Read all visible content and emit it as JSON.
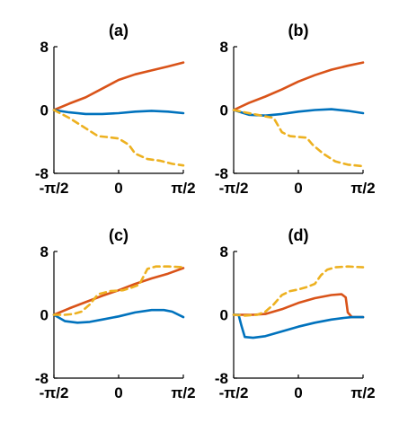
{
  "chart_data": [
    {
      "panel": "(a)",
      "title": "(a)",
      "type": "line",
      "x_ticks": [
        "-π/2",
        "0",
        "π/2"
      ],
      "y_ticks": [
        "8",
        "0",
        "-8"
      ],
      "xlim": [
        -1.5708,
        1.5708
      ],
      "ylim": [
        -8,
        8
      ],
      "series": [
        {
          "color": "#D95319",
          "dash": false,
          "x": [
            -1.5708,
            -1.2,
            -0.8,
            -0.4,
            0,
            0.4,
            0.8,
            1.2,
            1.5708
          ],
          "y": [
            0,
            0.8,
            1.6,
            2.7,
            3.8,
            4.5,
            5.0,
            5.5,
            6.0
          ]
        },
        {
          "color": "#0072BD",
          "dash": false,
          "x": [
            -1.5708,
            -1.2,
            -0.8,
            -0.4,
            0,
            0.4,
            0.8,
            1.2,
            1.5708
          ],
          "y": [
            0,
            -0.3,
            -0.5,
            -0.5,
            -0.4,
            -0.2,
            -0.1,
            -0.2,
            -0.4
          ]
        },
        {
          "color": "#EDB120",
          "dash": true,
          "x": [
            -1.5708,
            -1.2,
            -0.8,
            -0.5,
            -0.3,
            0,
            0.25,
            0.4,
            0.7,
            1.0,
            1.3,
            1.5708
          ],
          "y": [
            0,
            -1.0,
            -2.3,
            -3.3,
            -3.4,
            -3.6,
            -4.4,
            -5.5,
            -6.2,
            -6.4,
            -6.8,
            -7.0
          ]
        }
      ]
    },
    {
      "panel": "(b)",
      "title": "(b)",
      "type": "line",
      "x_ticks": [
        "-π/2",
        "0",
        "π/2"
      ],
      "y_ticks": [
        "8",
        "0",
        "-8"
      ],
      "xlim": [
        -1.5708,
        1.5708
      ],
      "ylim": [
        -8,
        8
      ],
      "series": [
        {
          "color": "#D95319",
          "dash": false,
          "x": [
            -1.5708,
            -1.2,
            -0.8,
            -0.4,
            0,
            0.4,
            0.8,
            1.2,
            1.5708
          ],
          "y": [
            0,
            0.9,
            1.7,
            2.6,
            3.6,
            4.4,
            5.1,
            5.6,
            6.0
          ]
        },
        {
          "color": "#0072BD",
          "dash": false,
          "x": [
            -1.5708,
            -1.2,
            -0.8,
            -0.4,
            0,
            0.4,
            0.8,
            1.2,
            1.5708
          ],
          "y": [
            0,
            -0.6,
            -0.7,
            -0.5,
            -0.2,
            -0.0,
            0.1,
            -0.1,
            -0.4
          ]
        },
        {
          "color": "#EDB120",
          "dash": true,
          "x": [
            -1.5708,
            -1.3,
            -1.0,
            -0.8,
            -0.6,
            -0.4,
            -0.2,
            0,
            0.2,
            0.35,
            0.6,
            0.9,
            1.2,
            1.5708
          ],
          "y": [
            0,
            -0.3,
            -0.6,
            -0.8,
            -1.0,
            -2.8,
            -3.3,
            -3.4,
            -3.5,
            -4.4,
            -5.5,
            -6.5,
            -6.9,
            -7.1
          ]
        }
      ]
    },
    {
      "panel": "(c)",
      "title": "(c)",
      "type": "line",
      "x_ticks": [
        "-π/2",
        "0",
        "π/2"
      ],
      "y_ticks": [
        "8",
        "0",
        "-8"
      ],
      "xlim": [
        -1.5708,
        1.5708
      ],
      "ylim": [
        -8,
        8
      ],
      "series": [
        {
          "color": "#D95319",
          "dash": false,
          "x": [
            -1.5708,
            -1.2,
            -0.8,
            -0.4,
            0,
            0.4,
            0.8,
            1.2,
            1.5708
          ],
          "y": [
            0,
            0.8,
            1.6,
            2.4,
            3.1,
            3.9,
            4.6,
            5.2,
            5.9
          ]
        },
        {
          "color": "#0072BD",
          "dash": false,
          "x": [
            -1.5708,
            -1.3,
            -1.0,
            -0.7,
            -0.4,
            0,
            0.4,
            0.8,
            1.1,
            1.3,
            1.5708
          ],
          "y": [
            0,
            -0.8,
            -1.0,
            -0.9,
            -0.6,
            -0.2,
            0.3,
            0.6,
            0.6,
            0.4,
            -0.3
          ]
        },
        {
          "color": "#EDB120",
          "dash": true,
          "x": [
            -1.5708,
            -1.3,
            -1.1,
            -0.9,
            -0.7,
            -0.5,
            -0.2,
            0.1,
            0.3,
            0.5,
            0.7,
            0.9,
            1.2,
            1.5708
          ],
          "y": [
            0,
            0.0,
            0.1,
            0.4,
            1.3,
            2.6,
            3.0,
            3.1,
            3.4,
            3.8,
            5.8,
            6.1,
            6.1,
            6.0
          ]
        }
      ]
    },
    {
      "panel": "(d)",
      "title": "(d)",
      "type": "line",
      "x_ticks": [
        "-π/2",
        "0",
        "π/2"
      ],
      "y_ticks": [
        "8",
        "0",
        "-8"
      ],
      "xlim": [
        -1.5708,
        1.5708
      ],
      "ylim": [
        -8,
        8
      ],
      "series": [
        {
          "color": "#D95319",
          "dash": false,
          "x": [
            -1.5708,
            -1.4,
            -1.1,
            -0.8,
            -0.4,
            0,
            0.4,
            0.8,
            1.05,
            1.15,
            1.2,
            1.3,
            1.5708
          ],
          "y": [
            0,
            0.0,
            0.0,
            0.1,
            0.7,
            1.5,
            2.1,
            2.5,
            2.6,
            2.2,
            0.3,
            -0.3,
            -0.3
          ]
        },
        {
          "color": "#0072BD",
          "dash": false,
          "x": [
            -1.5708,
            -1.45,
            -1.38,
            -1.3,
            -1.1,
            -0.8,
            -0.4,
            0,
            0.4,
            0.8,
            1.1,
            1.3,
            1.5708
          ],
          "y": [
            0,
            0.0,
            -1.4,
            -2.8,
            -2.9,
            -2.7,
            -2.1,
            -1.5,
            -1.0,
            -0.6,
            -0.4,
            -0.3,
            -0.3
          ]
        },
        {
          "color": "#EDB120",
          "dash": true,
          "x": [
            -1.5708,
            -1.3,
            -1.0,
            -0.8,
            -0.6,
            -0.4,
            -0.2,
            0,
            0.2,
            0.4,
            0.55,
            0.7,
            0.9,
            1.2,
            1.5708
          ],
          "y": [
            0,
            -0.1,
            0.0,
            0.4,
            1.3,
            2.5,
            3.0,
            3.2,
            3.5,
            3.9,
            5.0,
            5.7,
            6.0,
            6.1,
            6.0
          ]
        }
      ]
    }
  ]
}
